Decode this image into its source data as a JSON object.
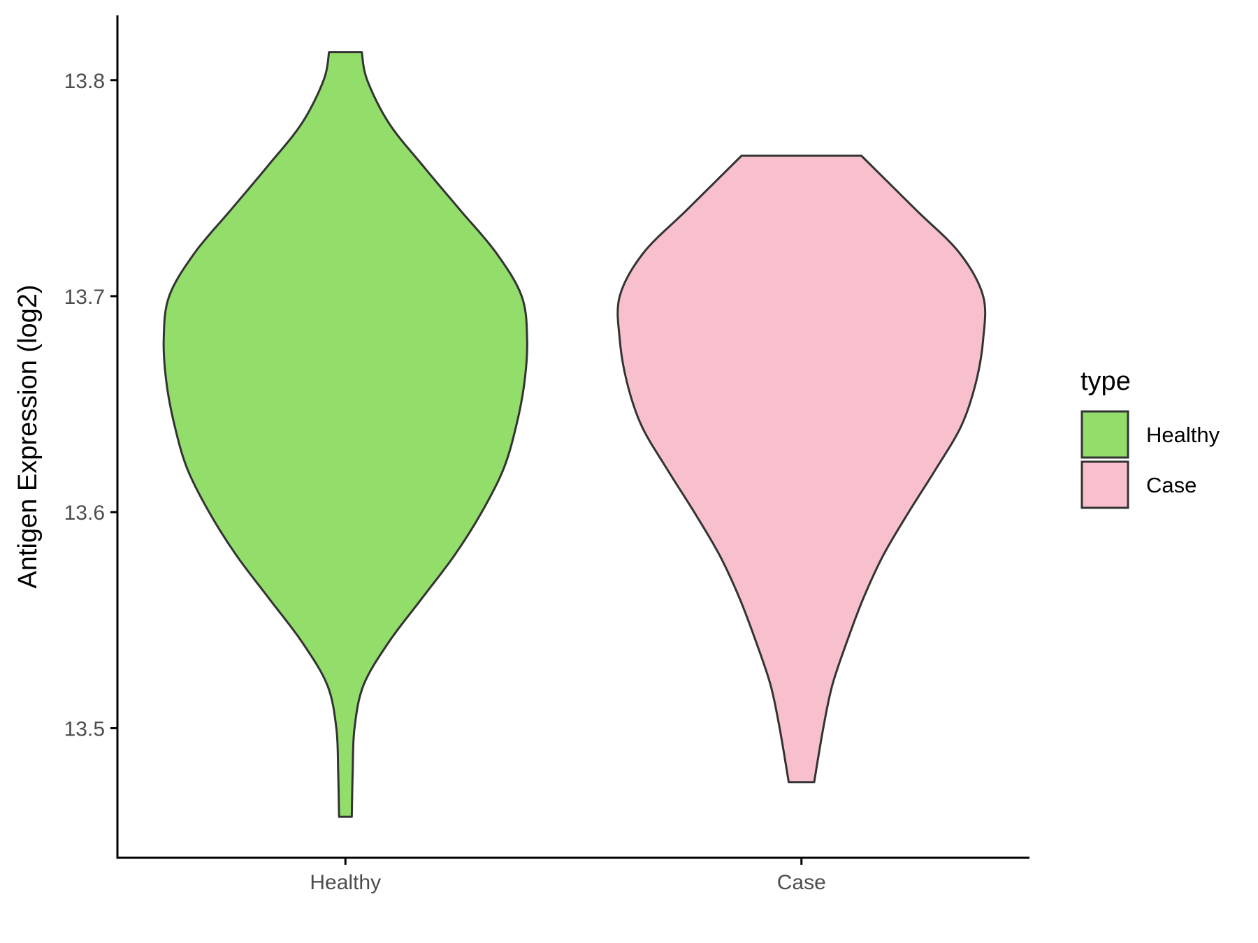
{
  "chart_data": {
    "type": "violin",
    "categories": [
      "Healthy",
      "Case"
    ],
    "ylabel": "Antigen Expression (log2)",
    "xlabel": "",
    "ylim": [
      13.44,
      13.83
    ],
    "yticks": [
      13.5,
      13.6,
      13.7,
      13.8
    ],
    "ytick_labels": [
      "13.5",
      "13.6",
      "13.7",
      "13.8"
    ],
    "legend": {
      "title": "type",
      "position": "right",
      "entries": [
        {
          "label": "Healthy",
          "color": "#93DD6A"
        },
        {
          "label": "Case",
          "color": "#F8C0CC"
        }
      ]
    },
    "grid": false,
    "outline_color": "#333333",
    "series": [
      {
        "category": "Healthy",
        "color": "#93DD6A",
        "min": 13.459,
        "max": 13.813,
        "density": [
          {
            "y": 13.459,
            "w": 0.035
          },
          {
            "y": 13.48,
            "w": 0.04
          },
          {
            "y": 13.5,
            "w": 0.05
          },
          {
            "y": 13.52,
            "w": 0.1
          },
          {
            "y": 13.54,
            "w": 0.24
          },
          {
            "y": 13.56,
            "w": 0.42
          },
          {
            "y": 13.58,
            "w": 0.6
          },
          {
            "y": 13.6,
            "w": 0.75
          },
          {
            "y": 13.62,
            "w": 0.87
          },
          {
            "y": 13.64,
            "w": 0.94
          },
          {
            "y": 13.66,
            "w": 0.985
          },
          {
            "y": 13.68,
            "w": 1.0
          },
          {
            "y": 13.7,
            "w": 0.97
          },
          {
            "y": 13.72,
            "w": 0.83
          },
          {
            "y": 13.74,
            "w": 0.63
          },
          {
            "y": 13.76,
            "w": 0.43
          },
          {
            "y": 13.78,
            "w": 0.24
          },
          {
            "y": 13.8,
            "w": 0.12
          },
          {
            "y": 13.813,
            "w": 0.09
          }
        ]
      },
      {
        "category": "Case",
        "color": "#F8C0CC",
        "min": 13.475,
        "max": 13.765,
        "density": [
          {
            "y": 13.475,
            "w": 0.07
          },
          {
            "y": 13.5,
            "w": 0.12
          },
          {
            "y": 13.52,
            "w": 0.17
          },
          {
            "y": 13.54,
            "w": 0.25
          },
          {
            "y": 13.56,
            "w": 0.34
          },
          {
            "y": 13.58,
            "w": 0.45
          },
          {
            "y": 13.6,
            "w": 0.59
          },
          {
            "y": 13.62,
            "w": 0.74
          },
          {
            "y": 13.64,
            "w": 0.88
          },
          {
            "y": 13.66,
            "w": 0.96
          },
          {
            "y": 13.68,
            "w": 1.0
          },
          {
            "y": 13.7,
            "w": 1.0
          },
          {
            "y": 13.72,
            "w": 0.87
          },
          {
            "y": 13.74,
            "w": 0.63
          },
          {
            "y": 13.765,
            "w": 0.33
          }
        ]
      }
    ]
  }
}
